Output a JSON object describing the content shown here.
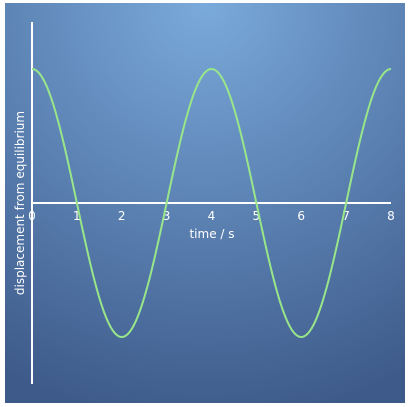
{
  "chart_data": {
    "type": "line",
    "title": "",
    "xlabel": "time / s",
    "ylabel": "displacement from equilibrium",
    "xlim": [
      0,
      8
    ],
    "ylim": [
      -1.35,
      1.35
    ],
    "x_ticks": [
      "0",
      "1",
      "2",
      "3",
      "4",
      "5",
      "6",
      "7",
      "8"
    ],
    "y_ticks": [],
    "grid": false,
    "legend": "none",
    "series": [
      {
        "color": "#99e68a",
        "x": [
          0,
          0.5,
          1,
          1.5,
          2,
          2.5,
          3,
          3.5,
          4,
          4.5,
          5,
          5.5,
          6,
          6.5,
          7,
          7.5,
          8
        ],
        "y": [
          1,
          0.707,
          0,
          -0.707,
          -1,
          -0.707,
          0,
          0.707,
          1,
          0.707,
          0,
          -0.707,
          -1,
          -0.707,
          0,
          0.707,
          1
        ],
        "form": "cosine",
        "amplitude": 1,
        "period": 4
      }
    ],
    "colors": {
      "background_light": "#7aaadb",
      "background_dark": "#3d5a8a",
      "axis": "#ffffff",
      "curve": "#99e68a"
    }
  }
}
